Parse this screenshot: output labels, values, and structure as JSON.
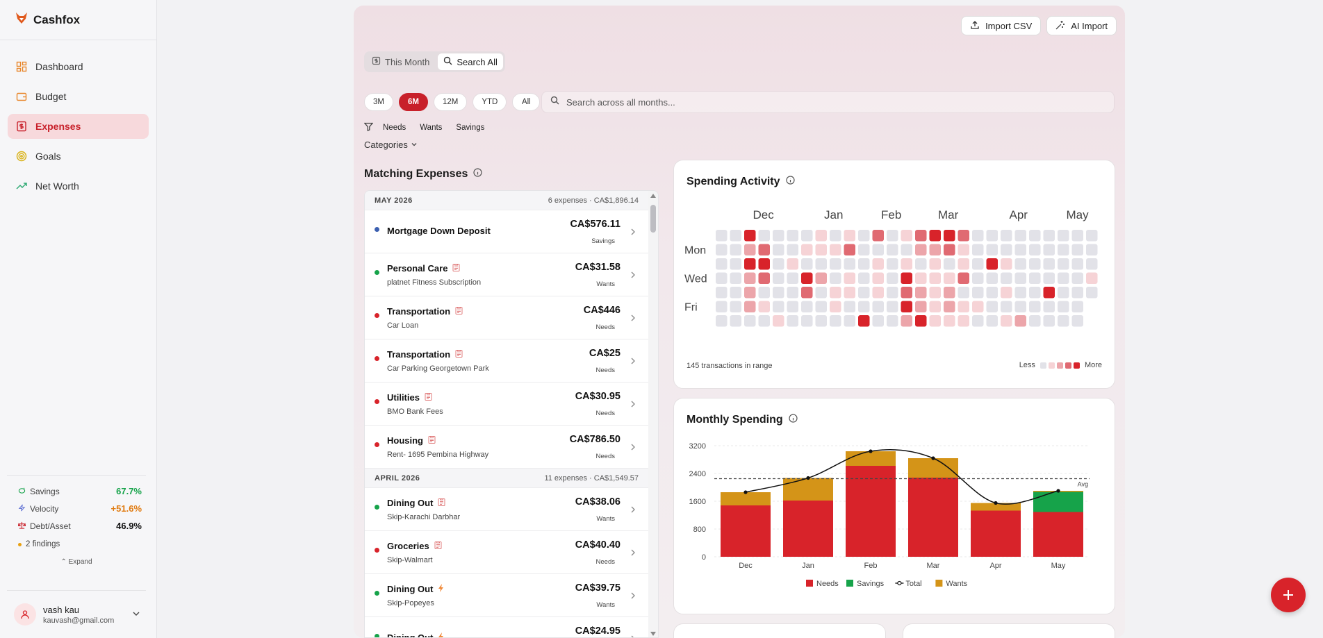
{
  "brand": {
    "name": "Cashfox"
  },
  "nav": [
    {
      "label": "Dashboard",
      "icon": "grid-icon",
      "active": false
    },
    {
      "label": "Budget",
      "icon": "wallet-icon",
      "active": false
    },
    {
      "label": "Expenses",
      "icon": "receipt-icon",
      "active": true
    },
    {
      "label": "Goals",
      "icon": "target-icon",
      "active": false
    },
    {
      "label": "Net Worth",
      "icon": "trend-icon",
      "active": false
    }
  ],
  "metrics": [
    {
      "label": "Savings",
      "value": "67.7%",
      "color": "#16a34a",
      "icon": "piggy-icon"
    },
    {
      "label": "Velocity",
      "value": "+51.6%",
      "color": "#e07b10",
      "icon": "bolt-icon"
    },
    {
      "label": "Debt/Asset",
      "value": "46.9%",
      "color": "#111111",
      "icon": "scale-icon"
    }
  ],
  "findings": "2 findings",
  "expand": "Expand",
  "user": {
    "name": "vash kau",
    "email": "kauvash@gmail.com"
  },
  "actions": {
    "import_csv": "Import CSV",
    "ai_import": "AI Import"
  },
  "toggle": {
    "this_month": "This Month",
    "search_all": "Search All"
  },
  "ranges": [
    {
      "label": "3M",
      "selected": false
    },
    {
      "label": "6M",
      "selected": true
    },
    {
      "label": "12M",
      "selected": false
    },
    {
      "label": "YTD",
      "selected": false
    },
    {
      "label": "All",
      "selected": false
    }
  ],
  "search": {
    "placeholder": "Search across all months..."
  },
  "filters": [
    "Needs",
    "Wants",
    "Savings"
  ],
  "categories_label": "Categories",
  "list_title": "Matching Expenses",
  "groups": [
    {
      "month": "MAY 2026",
      "meta": "6 expenses · CA$1,896.14",
      "rows": [
        {
          "name": "Mortgage Down Deposit",
          "sub": "",
          "amount": "CA$576.11",
          "tag": "Savings",
          "dot": "#3b5fb0",
          "icon": ""
        },
        {
          "name": "Personal Care",
          "sub": "platnet Fitness Subscription",
          "amount": "CA$31.58",
          "tag": "Wants",
          "dot": "#16a34a",
          "icon": "clipboard"
        },
        {
          "name": "Transportation",
          "sub": "Car Loan",
          "amount": "CA$446",
          "tag": "Needs",
          "dot": "#d8232a",
          "icon": "clipboard"
        },
        {
          "name": "Transportation",
          "sub": "Car Parking Georgetown Park",
          "amount": "CA$25",
          "tag": "Needs",
          "dot": "#d8232a",
          "icon": "clipboard"
        },
        {
          "name": "Utilities",
          "sub": "BMO Bank Fees",
          "amount": "CA$30.95",
          "tag": "Needs",
          "dot": "#d8232a",
          "icon": "clipboard"
        },
        {
          "name": "Housing",
          "sub": "Rent- 1695 Pembina Highway",
          "amount": "CA$786.50",
          "tag": "Needs",
          "dot": "#d8232a",
          "icon": "clipboard"
        }
      ]
    },
    {
      "month": "APRIL 2026",
      "meta": "11 expenses · CA$1,549.57",
      "rows": [
        {
          "name": "Dining Out",
          "sub": "Skip-Karachi Darbhar",
          "amount": "CA$38.06",
          "tag": "Wants",
          "dot": "#16a34a",
          "icon": "clipboard"
        },
        {
          "name": "Groceries",
          "sub": "Skip-Walmart",
          "amount": "CA$40.40",
          "tag": "Needs",
          "dot": "#d8232a",
          "icon": "clipboard"
        },
        {
          "name": "Dining Out",
          "sub": "Skip-Popeyes",
          "amount": "CA$39.75",
          "tag": "Wants",
          "dot": "#16a34a",
          "icon": "bolt"
        },
        {
          "name": "Dining Out",
          "sub": "",
          "amount": "CA$24.95",
          "tag": "",
          "dot": "#16a34a",
          "icon": "bolt"
        }
      ]
    }
  ],
  "heatmap": {
    "title": "Spending Activity",
    "months": [
      "Dec",
      "Jan",
      "Feb",
      "Mar",
      "Apr",
      "May"
    ],
    "days": [
      "Mon",
      "Wed",
      "Fri"
    ],
    "footer": "145 transactions in range",
    "less": "Less",
    "more": "More",
    "colors": [
      "#e2e2e8",
      "#f6d3d6",
      "#eca5aa",
      "#e06a72",
      "#d8232a"
    ],
    "grid": [
      [
        0,
        0,
        4,
        0,
        0,
        0,
        0,
        1,
        0,
        1,
        0,
        3,
        0,
        1,
        3,
        4,
        4,
        3,
        0,
        0,
        0,
        0,
        0,
        0,
        0,
        0,
        0
      ],
      [
        0,
        0,
        2,
        3,
        0,
        0,
        1,
        1,
        1,
        3,
        0,
        0,
        0,
        0,
        2,
        2,
        3,
        1,
        0,
        0,
        0,
        0,
        0,
        0,
        0,
        0,
        0
      ],
      [
        0,
        0,
        4,
        4,
        0,
        1,
        0,
        0,
        0,
        0,
        0,
        1,
        0,
        1,
        0,
        1,
        0,
        1,
        0,
        4,
        1,
        0,
        0,
        0,
        0,
        0,
        0
      ],
      [
        0,
        0,
        2,
        3,
        0,
        0,
        4,
        2,
        0,
        1,
        0,
        1,
        0,
        4,
        1,
        1,
        1,
        3,
        0,
        0,
        0,
        0,
        0,
        0,
        0,
        0,
        1
      ],
      [
        0,
        0,
        2,
        0,
        0,
        0,
        3,
        0,
        1,
        1,
        0,
        1,
        0,
        3,
        2,
        1,
        2,
        0,
        0,
        0,
        1,
        0,
        0,
        4,
        0,
        0,
        0
      ],
      [
        0,
        0,
        2,
        1,
        0,
        0,
        0,
        0,
        1,
        0,
        0,
        0,
        0,
        4,
        2,
        1,
        2,
        1,
        1,
        0,
        0,
        0,
        0,
        0,
        0,
        0
      ],
      [
        0,
        0,
        0,
        0,
        1,
        0,
        0,
        0,
        0,
        0,
        4,
        0,
        0,
        2,
        4,
        1,
        1,
        1,
        0,
        0,
        1,
        2,
        0,
        0,
        0,
        0
      ]
    ]
  },
  "monthly": {
    "title": "Monthly Spending",
    "chart_data": {
      "type": "bar",
      "categories": [
        "Dec",
        "Jan",
        "Feb",
        "Mar",
        "Apr",
        "May"
      ],
      "series": [
        {
          "name": "Needs",
          "values": [
            1480,
            1620,
            2620,
            2280,
            1330,
            1290
          ],
          "color": "#d8232a"
        },
        {
          "name": "Savings",
          "values": [
            0,
            0,
            0,
            0,
            0,
            580
          ],
          "color": "#16a34a"
        },
        {
          "name": "Wants",
          "values": [
            380,
            650,
            420,
            560,
            220,
            30
          ],
          "color": "#d49418"
        }
      ],
      "total": {
        "name": "Total",
        "values": [
          1860,
          2270,
          3040,
          2840,
          1550,
          1900
        ]
      },
      "avg": {
        "label": "Avg",
        "value": 2250
      },
      "yticks": [
        "0",
        "800",
        "1600",
        "2400",
        "3200"
      ],
      "ylim": [
        0,
        3200
      ],
      "legend": [
        "Needs",
        "Savings",
        "Total",
        "Wants"
      ],
      "legend_placement": "bottom"
    }
  }
}
